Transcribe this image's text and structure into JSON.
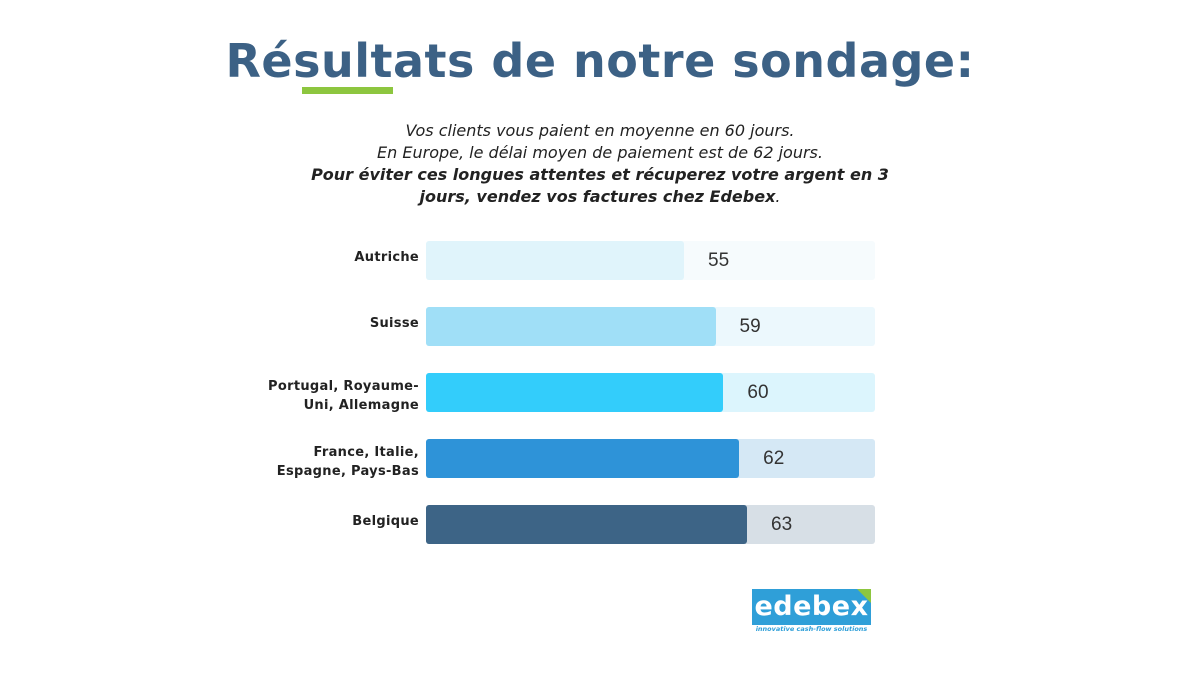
{
  "title": "Résultats de notre sondage:",
  "subtitle": {
    "line1": "Vos clients vous paient en moyenne en 60 jours.",
    "line2": "En Europe, le délai moyen de paiement est de 62 jours.",
    "line3_bold": "Pour éviter ces longues attentes et récuperez votre argent en 3 jours, vendez vos factures chez Edebex",
    "line3_end": "."
  },
  "logo": {
    "text": "edebex",
    "tagline": "innovative cash-flow solutions"
  },
  "chart_data": {
    "type": "bar",
    "orientation": "horizontal",
    "categories": [
      "Autriche",
      "Suisse",
      "Portugal, Royaume-Uni, Allemagne",
      "France, Italie, Espagne, Pays-Bas",
      "Belgique"
    ],
    "values": [
      55,
      59,
      60,
      62,
      63
    ],
    "xlim": [
      0,
      100
    ],
    "colors": {
      "bars": [
        "#e0f4fb",
        "#a0dff7",
        "#33cdfb",
        "#2e93d8",
        "#3d6486"
      ],
      "tracks": [
        "#f6fbfd",
        "#ecf8fd",
        "#dcf5fd",
        "#d5e8f5",
        "#d7dfe6"
      ]
    },
    "title": "",
    "xlabel": "",
    "ylabel": ""
  }
}
